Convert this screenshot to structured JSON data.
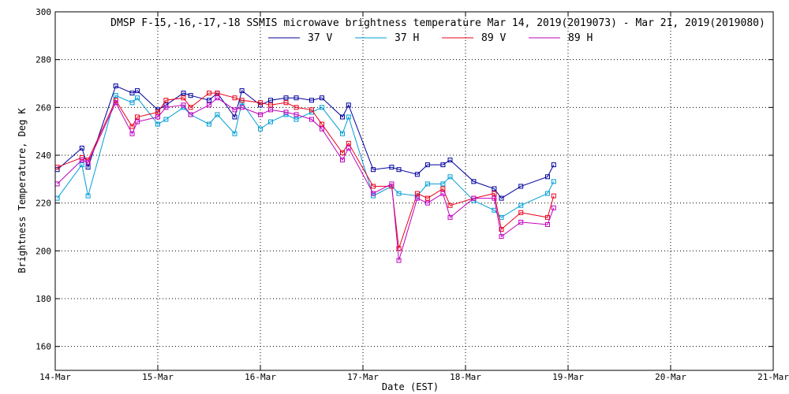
{
  "chart_data": {
    "type": "line",
    "title": "DMSP F-15,-16,-17,-18 SSMIS microwave brightness temperature Mar 14, 2019(2019073) - Mar 21, 2019(2019080)",
    "xlabel": "Date (EST)",
    "ylabel": "Brightness Temperature, Deg K",
    "xlim": [
      0,
      7
    ],
    "ylim": [
      150,
      300
    ],
    "x_ticks": [
      {
        "value": 0,
        "label": "14-Mar"
      },
      {
        "value": 1,
        "label": "15-Mar"
      },
      {
        "value": 2,
        "label": "16-Mar"
      },
      {
        "value": 3,
        "label": "17-Mar"
      },
      {
        "value": 4,
        "label": "18-Mar"
      },
      {
        "value": 5,
        "label": "19-Mar"
      },
      {
        "value": 6,
        "label": "20-Mar"
      },
      {
        "value": 7,
        "label": "21-Mar"
      }
    ],
    "y_ticks": [
      160,
      180,
      200,
      220,
      240,
      260,
      280,
      300
    ],
    "grid": true,
    "legend_position": "top-center",
    "series": [
      {
        "name": "37 V",
        "color": "#00009c",
        "points": [
          [
            0.02,
            234
          ],
          [
            0.26,
            243
          ],
          [
            0.32,
            235
          ],
          [
            0.59,
            269
          ],
          [
            0.75,
            266
          ],
          [
            0.8,
            267
          ],
          [
            1.0,
            259
          ],
          [
            1.08,
            261
          ],
          [
            1.25,
            266
          ],
          [
            1.32,
            265
          ],
          [
            1.5,
            263
          ],
          [
            1.58,
            266
          ],
          [
            1.75,
            256
          ],
          [
            1.82,
            267
          ],
          [
            2.0,
            261
          ],
          [
            2.1,
            263
          ],
          [
            2.25,
            264
          ],
          [
            2.35,
            264
          ],
          [
            2.5,
            263
          ],
          [
            2.6,
            264
          ],
          [
            2.8,
            256
          ],
          [
            2.86,
            261
          ],
          [
            3.1,
            234
          ],
          [
            3.28,
            235
          ],
          [
            3.35,
            234
          ],
          [
            3.53,
            232
          ],
          [
            3.63,
            236
          ],
          [
            3.78,
            236
          ],
          [
            3.85,
            238
          ],
          [
            4.08,
            229
          ],
          [
            4.28,
            226
          ],
          [
            4.35,
            222
          ],
          [
            4.54,
            227
          ],
          [
            4.8,
            231
          ],
          [
            4.86,
            236
          ]
        ]
      },
      {
        "name": "37 H",
        "color": "#009ed6",
        "points": [
          [
            0.02,
            222
          ],
          [
            0.26,
            236
          ],
          [
            0.32,
            223
          ],
          [
            0.59,
            265
          ],
          [
            0.75,
            262
          ],
          [
            0.8,
            264
          ],
          [
            1.0,
            253
          ],
          [
            1.08,
            255
          ],
          [
            1.25,
            260
          ],
          [
            1.32,
            257
          ],
          [
            1.5,
            253
          ],
          [
            1.58,
            257
          ],
          [
            1.75,
            249
          ],
          [
            1.82,
            262
          ],
          [
            2.0,
            251
          ],
          [
            2.1,
            254
          ],
          [
            2.25,
            257
          ],
          [
            2.35,
            255
          ],
          [
            2.5,
            258
          ],
          [
            2.6,
            260
          ],
          [
            2.8,
            249
          ],
          [
            2.86,
            256
          ],
          [
            3.1,
            223
          ],
          [
            3.28,
            227
          ],
          [
            3.35,
            224
          ],
          [
            3.53,
            223
          ],
          [
            3.63,
            228
          ],
          [
            3.78,
            228
          ],
          [
            3.85,
            231
          ],
          [
            4.08,
            221
          ],
          [
            4.28,
            217
          ],
          [
            4.35,
            214
          ],
          [
            4.54,
            219
          ],
          [
            4.8,
            224
          ],
          [
            4.86,
            229
          ]
        ]
      },
      {
        "name": "89 V",
        "color": "#e8001a",
        "points": [
          [
            0.02,
            235
          ],
          [
            0.26,
            239
          ],
          [
            0.32,
            238
          ],
          [
            0.59,
            263
          ],
          [
            0.75,
            252
          ],
          [
            0.8,
            256
          ],
          [
            1.0,
            258
          ],
          [
            1.08,
            263
          ],
          [
            1.25,
            264
          ],
          [
            1.32,
            260
          ],
          [
            1.5,
            266
          ],
          [
            1.58,
            266
          ],
          [
            1.75,
            264
          ],
          [
            1.82,
            263
          ],
          [
            2.0,
            262
          ],
          [
            2.1,
            261
          ],
          [
            2.25,
            262
          ],
          [
            2.35,
            260
          ],
          [
            2.5,
            259
          ],
          [
            2.6,
            253
          ],
          [
            2.8,
            241
          ],
          [
            2.86,
            245
          ],
          [
            3.1,
            227
          ],
          [
            3.28,
            227
          ],
          [
            3.35,
            201
          ],
          [
            3.53,
            224
          ],
          [
            3.63,
            222
          ],
          [
            3.78,
            226
          ],
          [
            3.85,
            219
          ],
          [
            4.08,
            222
          ],
          [
            4.28,
            224
          ],
          [
            4.35,
            209
          ],
          [
            4.54,
            216
          ],
          [
            4.8,
            214
          ],
          [
            4.86,
            223
          ]
        ]
      },
      {
        "name": "89 H",
        "color": "#c000c0",
        "points": [
          [
            0.02,
            228
          ],
          [
            0.26,
            238
          ],
          [
            0.32,
            237
          ],
          [
            0.59,
            262
          ],
          [
            0.75,
            249
          ],
          [
            0.8,
            254
          ],
          [
            1.0,
            256
          ],
          [
            1.08,
            260
          ],
          [
            1.25,
            261
          ],
          [
            1.32,
            257
          ],
          [
            1.5,
            261
          ],
          [
            1.58,
            264
          ],
          [
            1.75,
            259
          ],
          [
            1.82,
            260
          ],
          [
            2.0,
            257
          ],
          [
            2.1,
            259
          ],
          [
            2.25,
            258
          ],
          [
            2.35,
            257
          ],
          [
            2.5,
            255
          ],
          [
            2.6,
            251
          ],
          [
            2.8,
            238
          ],
          [
            2.86,
            243
          ],
          [
            3.1,
            224
          ],
          [
            3.28,
            228
          ],
          [
            3.35,
            196
          ],
          [
            3.53,
            222
          ],
          [
            3.63,
            220
          ],
          [
            3.78,
            224
          ],
          [
            3.85,
            214
          ],
          [
            4.08,
            222
          ],
          [
            4.28,
            222
          ],
          [
            4.35,
            206
          ],
          [
            4.54,
            212
          ],
          [
            4.8,
            211
          ],
          [
            4.86,
            218
          ]
        ]
      }
    ]
  }
}
